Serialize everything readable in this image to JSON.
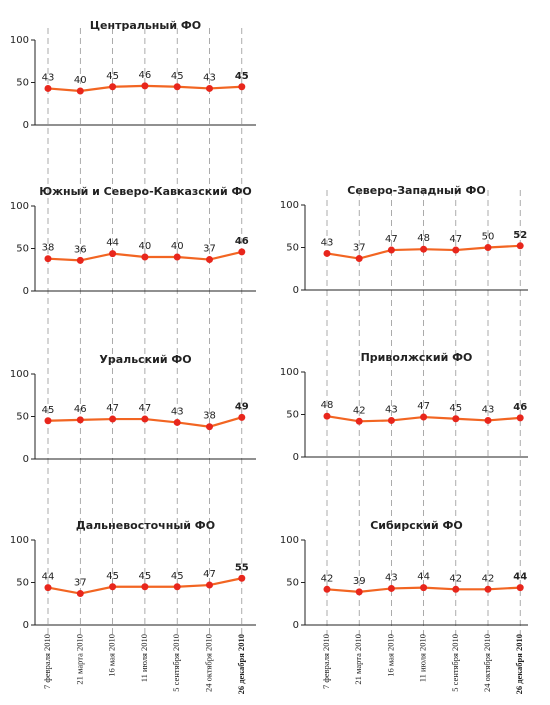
{
  "chart_data": [
    {
      "type": "line",
      "title": "Центральный ФО",
      "values": [
        43,
        40,
        45,
        46,
        45,
        43,
        45
      ],
      "ylim": [
        0,
        100
      ],
      "yticks": [
        0,
        50,
        100
      ],
      "color": "#f26522"
    },
    {
      "type": "line",
      "title": "Южный и Северо-Кавказский ФО",
      "values": [
        38,
        36,
        44,
        40,
        40,
        37,
        46
      ],
      "ylim": [
        0,
        100
      ],
      "yticks": [
        0,
        50,
        100
      ],
      "color": "#f26522"
    },
    {
      "type": "line",
      "title": "Северо-Западный ФО",
      "values": [
        43,
        37,
        47,
        48,
        47,
        50,
        52
      ],
      "ylim": [
        0,
        100
      ],
      "yticks": [
        0,
        50,
        100
      ],
      "color": "#f26522"
    },
    {
      "type": "line",
      "title": "Уральский ФО",
      "values": [
        45,
        46,
        47,
        47,
        43,
        38,
        49
      ],
      "ylim": [
        0,
        100
      ],
      "yticks": [
        0,
        50,
        100
      ],
      "color": "#f26522"
    },
    {
      "type": "line",
      "title": "Приволжский ФО",
      "values": [
        48,
        42,
        43,
        47,
        45,
        43,
        46
      ],
      "ylim": [
        0,
        100
      ],
      "yticks": [
        0,
        50,
        100
      ],
      "color": "#f26522"
    },
    {
      "type": "line",
      "title": "Дальневосточный ФО",
      "categories": [
        "7 февраля 2010",
        "21 марта 2010",
        "16 мая 2010",
        "11 июля 2010",
        "5 сентября 2010",
        "24 октября 2010",
        "26 декабря 2010"
      ],
      "values": [
        44,
        37,
        45,
        45,
        45,
        47,
        55
      ],
      "ylim": [
        0,
        100
      ],
      "yticks": [
        0,
        50,
        100
      ],
      "color": "#f26522"
    },
    {
      "type": "line",
      "title": "Сибирский ФО",
      "categories": [
        "7 февраля 2010",
        "21 марта 2010",
        "16 мая 2010",
        "11 июля 2010",
        "5 сентября 2010",
        "24 октября 2010",
        "26 декабря 2010"
      ],
      "values": [
        42,
        39,
        43,
        44,
        42,
        42,
        44
      ],
      "ylim": [
        0,
        100
      ],
      "yticks": [
        0,
        50,
        100
      ],
      "color": "#f26522"
    }
  ]
}
